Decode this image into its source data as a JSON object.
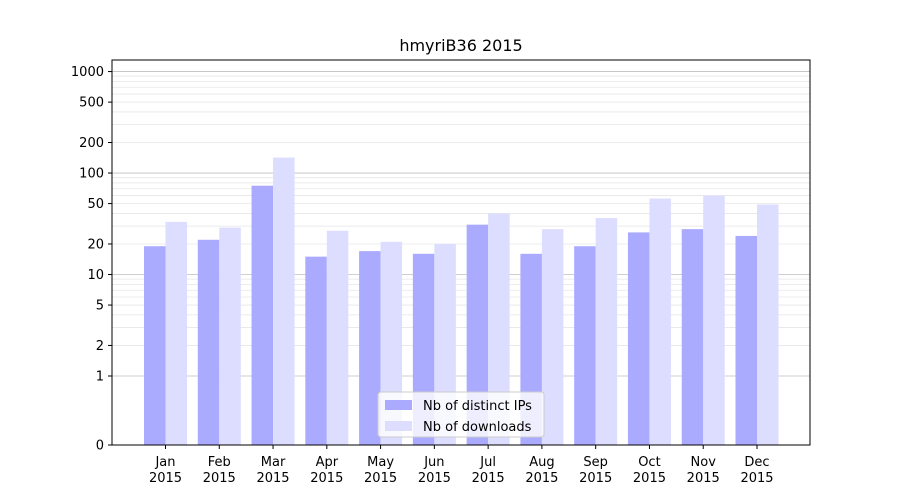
{
  "chart_data": {
    "type": "bar",
    "title": "hmyriB36 2015",
    "xlabel": "",
    "ylabel": "",
    "yscale": "symlog",
    "ylim": [
      0,
      1300
    ],
    "yticks": [
      0,
      1,
      2,
      5,
      10,
      20,
      50,
      100,
      200,
      500,
      1000
    ],
    "ytick_labels": [
      "0",
      "1",
      "2",
      "5",
      "10",
      "20",
      "50",
      "100",
      "200",
      "500",
      "1000"
    ],
    "grid": true,
    "legend_position": "bottom-center",
    "categories": [
      [
        "Jan",
        "2015"
      ],
      [
        "Feb",
        "2015"
      ],
      [
        "Mar",
        "2015"
      ],
      [
        "Apr",
        "2015"
      ],
      [
        "May",
        "2015"
      ],
      [
        "Jun",
        "2015"
      ],
      [
        "Jul",
        "2015"
      ],
      [
        "Aug",
        "2015"
      ],
      [
        "Sep",
        "2015"
      ],
      [
        "Oct",
        "2015"
      ],
      [
        "Nov",
        "2015"
      ],
      [
        "Dec",
        "2015"
      ]
    ],
    "series": [
      {
        "name": "Nb of distinct IPs",
        "color": "#aaaaff",
        "values": [
          19,
          22,
          75,
          15,
          17,
          16,
          31,
          16,
          19,
          26,
          28,
          24
        ]
      },
      {
        "name": "Nb of downloads",
        "color": "#ddddff",
        "values": [
          33,
          29,
          142,
          27,
          21,
          20,
          40,
          28,
          36,
          56,
          60,
          49
        ]
      }
    ]
  }
}
